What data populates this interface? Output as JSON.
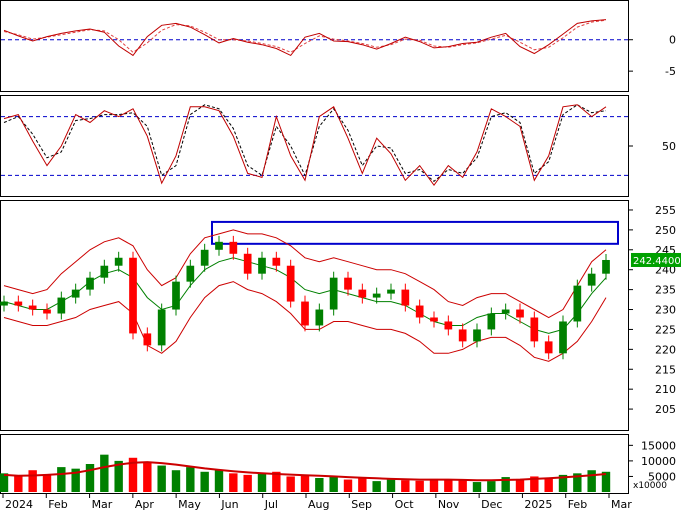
{
  "chart_data": [
    {
      "panel": "macd",
      "type": "line",
      "ylim": [
        -8,
        6
      ],
      "y_ticks": [
        "0",
        "-5"
      ],
      "y_tick_values": [
        0,
        -5
      ],
      "reference_lines": [
        0
      ],
      "colors": {
        "line": "#c00000",
        "signal": "#e04040",
        "reference": "#0000cc"
      },
      "series": [
        {
          "style": "solid",
          "values": [
            1.5,
            0.6,
            -0.2,
            0.5,
            1.0,
            1.4,
            1.7,
            1.2,
            -1.0,
            -2.5,
            0.5,
            2.3,
            2.6,
            2.0,
            0.8,
            -0.5,
            0.2,
            -0.4,
            -0.8,
            -1.4,
            -2.5,
            0.4,
            1.0,
            -0.2,
            -0.3,
            -0.8,
            -1.5,
            -0.6,
            0.4,
            -0.3,
            -1.3,
            -1.1,
            -0.6,
            -0.4,
            0.4,
            1.0,
            -1.1,
            -2.2,
            -0.8,
            0.9,
            2.6,
            3.0,
            3.2
          ]
        },
        {
          "style": "dashed",
          "values": [
            1.3,
            0.8,
            0.1,
            0.4,
            0.8,
            1.2,
            1.6,
            1.4,
            0.0,
            -2.0,
            -0.5,
            1.5,
            2.4,
            2.2,
            1.2,
            0.0,
            0.0,
            -0.2,
            -0.6,
            -1.1,
            -2.0,
            -0.6,
            0.6,
            0.1,
            -0.2,
            -0.6,
            -1.2,
            -0.8,
            0.1,
            -0.1,
            -1.0,
            -1.2,
            -0.8,
            -0.5,
            0.1,
            0.7,
            -0.4,
            -1.6,
            -1.2,
            0.3,
            2.0,
            2.8,
            3.1
          ]
        }
      ]
    },
    {
      "panel": "stochastic",
      "type": "line",
      "ylim": [
        0,
        100
      ],
      "y_ticks": [
        "50"
      ],
      "y_tick_values": [
        50
      ],
      "reference_lines": [
        80,
        20
      ],
      "colors": {
        "k": "#c00000",
        "d": "#000000",
        "reference": "#0000cc"
      },
      "series": [
        {
          "style": "solid",
          "values": [
            78,
            82,
            55,
            30,
            50,
            82,
            74,
            86,
            80,
            88,
            60,
            12,
            40,
            90,
            90,
            86,
            60,
            22,
            18,
            80,
            40,
            15,
            80,
            90,
            58,
            22,
            58,
            42,
            15,
            30,
            10,
            30,
            18,
            44,
            88,
            80,
            70,
            15,
            40,
            90,
            92,
            80,
            90
          ]
        },
        {
          "style": "dashed",
          "values": [
            74,
            80,
            62,
            38,
            44,
            76,
            78,
            82,
            82,
            84,
            70,
            20,
            30,
            82,
            92,
            88,
            68,
            30,
            20,
            70,
            50,
            20,
            70,
            88,
            66,
            30,
            50,
            48,
            22,
            26,
            14,
            26,
            22,
            38,
            80,
            84,
            74,
            22,
            34,
            82,
            92,
            84,
            86
          ]
        }
      ]
    },
    {
      "panel": "price",
      "type": "candlestick",
      "ylim": [
        200,
        257
      ],
      "y_ticks": [
        "255",
        "250",
        "245",
        "240",
        "235",
        "230",
        "225",
        "220",
        "215",
        "210",
        "205"
      ],
      "y_tick_values": [
        255,
        250,
        245,
        240,
        235,
        230,
        225,
        220,
        215,
        210,
        205
      ],
      "last_price_label": "242.4400",
      "resistance_zone": [
        246.5,
        252
      ],
      "colors": {
        "up": "#008000",
        "down": "#ff0000",
        "bands": "#cc0000",
        "ma": "#008000",
        "zone": "#0000cc",
        "price_label_bg": "#00a000"
      },
      "close": [
        232,
        231,
        230,
        229,
        233,
        235,
        238,
        241,
        243,
        224,
        221,
        230,
        237,
        241,
        245,
        247,
        244,
        239,
        243,
        241,
        232,
        226,
        230,
        238,
        235,
        233,
        234,
        235,
        231,
        228,
        227,
        225,
        222,
        225,
        229,
        230,
        228,
        222,
        219,
        227,
        236,
        239,
        242.44
      ],
      "upper_band": [
        236,
        235,
        234,
        235,
        239,
        242,
        245,
        247,
        248,
        246,
        240,
        236,
        238,
        244,
        248,
        249,
        250,
        249,
        249,
        248,
        246,
        243,
        242,
        243,
        242,
        241,
        240,
        240,
        239,
        237,
        235,
        232,
        231,
        233,
        234,
        234,
        232,
        230,
        228,
        230,
        236,
        242,
        245
      ],
      "middle_band": [
        232,
        231,
        230,
        230,
        232,
        234,
        237,
        239,
        240,
        238,
        233,
        230,
        231,
        236,
        240,
        242,
        243,
        242,
        241,
        240,
        238,
        235,
        234,
        235,
        234,
        233,
        232,
        232,
        231,
        229,
        227,
        226,
        226,
        228,
        229,
        229,
        227,
        225,
        224,
        225,
        229,
        234,
        238
      ],
      "lower_band": [
        228,
        227,
        226,
        226,
        227,
        228,
        230,
        231,
        232,
        229,
        221,
        219,
        222,
        228,
        233,
        236,
        237,
        235,
        234,
        232,
        229,
        225,
        225,
        227,
        227,
        226,
        225,
        225,
        224,
        222,
        219,
        219,
        220,
        222,
        223,
        223,
        221,
        218,
        217,
        219,
        222,
        227,
        233
      ]
    },
    {
      "panel": "volume",
      "type": "bar",
      "ylim": [
        0,
        18000
      ],
      "y_ticks": [
        "15000",
        "10000",
        "5000"
      ],
      "y_tick_values": [
        15000,
        10000,
        5000
      ],
      "unit_label": "x10000",
      "colors": {
        "up": "#008000",
        "down": "#ff0000",
        "ma": "#cc0000"
      },
      "values": [
        6000,
        5000,
        7000,
        5500,
        8000,
        7500,
        9000,
        12000,
        10000,
        11000,
        9500,
        8500,
        7000,
        8000,
        6500,
        7000,
        6000,
        5500,
        6000,
        6500,
        5000,
        5500,
        4500,
        5000,
        4000,
        4500,
        3500,
        4000,
        3800,
        3600,
        4200,
        4000,
        3800,
        3200,
        3500,
        4800,
        4200,
        5000,
        4500,
        5500,
        6000,
        7000,
        6500
      ],
      "ma": [
        5500,
        5200,
        5300,
        5500,
        5800,
        6200,
        7000,
        8000,
        8800,
        9400,
        9600,
        9300,
        8800,
        8200,
        7600,
        7100,
        6700,
        6300,
        6000,
        5800,
        5600,
        5400,
        5200,
        5000,
        4800,
        4600,
        4400,
        4200,
        4100,
        4000,
        4000,
        4000,
        3900,
        3800,
        3800,
        3900,
        4000,
        4200,
        4400,
        4700,
        5000,
        5400,
        5800
      ]
    }
  ],
  "x_axis": {
    "labels": [
      "2024",
      "Feb",
      "Mar",
      "Apr",
      "May",
      "Jun",
      "Jul",
      "Aug",
      "Sep",
      "Oct",
      "Nov",
      "Dec",
      "2025",
      "Feb",
      "Mar"
    ]
  }
}
